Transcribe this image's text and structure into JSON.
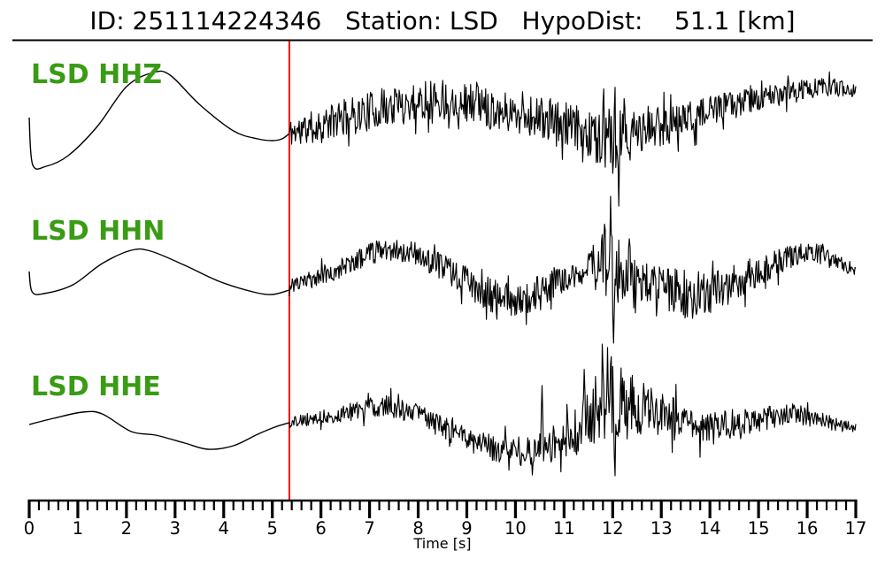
{
  "figure": {
    "title": "ID: 251114224346   Station: LSD   HypoDist:    51.1 [km]",
    "event_id": "251114224346",
    "station": "LSD",
    "hypodist_km": 51.1
  },
  "chart_data": {
    "type": "line",
    "title": "ID: 251114224346   Station: LSD   HypoDist:    51.1 [km]",
    "xlabel": "Time [s]",
    "xlim": [
      0,
      17
    ],
    "x_ticks": [
      0,
      1,
      2,
      3,
      4,
      5,
      6,
      7,
      8,
      9,
      10,
      11,
      12,
      13,
      14,
      15,
      16,
      17
    ],
    "minor_tick_step_s": 0.2,
    "grid": false,
    "legend": "none",
    "pick_time_s": 5.35,
    "colors": {
      "trace": "#000000",
      "pick_line": "#fa0b0b",
      "channel_label": "#3a9b15",
      "text": "#000000"
    },
    "series": [
      {
        "name": "LSD HHZ",
        "seed": 11,
        "pre_pick": [
          [
            0,
            5
          ],
          [
            0.07,
            -48
          ],
          [
            0.35,
            -50
          ],
          [
            0.8,
            -38
          ],
          [
            1.4,
            -5
          ],
          [
            2.0,
            40
          ],
          [
            2.55,
            56
          ],
          [
            2.9,
            53
          ],
          [
            3.5,
            20
          ],
          [
            4.2,
            -10
          ],
          [
            4.7,
            -19
          ],
          [
            5.0,
            -21
          ],
          [
            5.2,
            -19
          ],
          [
            5.35,
            -13
          ]
        ],
        "post_center": [
          [
            5.35,
            -12
          ],
          [
            6.0,
            -4
          ],
          [
            6.5,
            5
          ],
          [
            7.2,
            15
          ],
          [
            8.3,
            27
          ],
          [
            9.0,
            23
          ],
          [
            9.8,
            12
          ],
          [
            10.5,
            5
          ],
          [
            11.3,
            -10
          ],
          [
            11.9,
            -20
          ],
          [
            12.4,
            -16
          ],
          [
            13.0,
            -3
          ],
          [
            13.8,
            8
          ],
          [
            14.5,
            20
          ],
          [
            15.3,
            30
          ],
          [
            16.3,
            40
          ],
          [
            17,
            37
          ]
        ],
        "post_envelope": [
          [
            5.35,
            16
          ],
          [
            6.0,
            20
          ],
          [
            7.0,
            22
          ],
          [
            8.0,
            24
          ],
          [
            9.0,
            22
          ],
          [
            10.0,
            22
          ],
          [
            10.8,
            26
          ],
          [
            11.6,
            30
          ],
          [
            12.1,
            38
          ],
          [
            12.6,
            28
          ],
          [
            13.4,
            20
          ],
          [
            14.2,
            17
          ],
          [
            15.2,
            13
          ],
          [
            16.2,
            11
          ],
          [
            17,
            9
          ]
        ],
        "spikes": [
          [
            9.2,
            45
          ],
          [
            12.0,
            -58
          ],
          [
            12.13,
            -95
          ]
        ]
      },
      {
        "name": "LSD HHN",
        "seed": 23,
        "pre_pick": [
          [
            0,
            3
          ],
          [
            0.06,
            -20
          ],
          [
            0.3,
            -22
          ],
          [
            0.9,
            -12
          ],
          [
            1.5,
            12
          ],
          [
            2.1,
            27
          ],
          [
            2.5,
            26
          ],
          [
            3.2,
            10
          ],
          [
            3.9,
            -8
          ],
          [
            4.6,
            -20
          ],
          [
            5.0,
            -23
          ],
          [
            5.35,
            -18
          ]
        ],
        "post_center": [
          [
            5.35,
            -15
          ],
          [
            6.0,
            -2
          ],
          [
            6.6,
            12
          ],
          [
            7.3,
            30
          ],
          [
            7.8,
            26
          ],
          [
            8.6,
            5
          ],
          [
            9.4,
            -22
          ],
          [
            10.1,
            -30
          ],
          [
            10.7,
            -14
          ],
          [
            11.3,
            2
          ],
          [
            11.9,
            8
          ],
          [
            12.4,
            -2
          ],
          [
            13.0,
            -16
          ],
          [
            13.6,
            -24
          ],
          [
            14.3,
            -16
          ],
          [
            15.0,
            2
          ],
          [
            15.7,
            22
          ],
          [
            16.1,
            28
          ],
          [
            16.6,
            14
          ],
          [
            17,
            2
          ]
        ],
        "post_envelope": [
          [
            5.35,
            7
          ],
          [
            6.0,
            11
          ],
          [
            7.0,
            13
          ],
          [
            8.0,
            14
          ],
          [
            8.8,
            16
          ],
          [
            9.6,
            20
          ],
          [
            10.2,
            20
          ],
          [
            10.9,
            16
          ],
          [
            11.5,
            16
          ],
          [
            11.95,
            55
          ],
          [
            12.3,
            22
          ],
          [
            12.9,
            26
          ],
          [
            13.6,
            28
          ],
          [
            14.4,
            22
          ],
          [
            15.2,
            16
          ],
          [
            16.0,
            13
          ],
          [
            16.6,
            10
          ],
          [
            17,
            5
          ]
        ],
        "spikes": [
          [
            11.95,
            88
          ],
          [
            12.02,
            -78
          ],
          [
            12.35,
            40
          ],
          [
            13.25,
            -42
          ]
        ]
      },
      {
        "name": "LSD HHE",
        "seed": 37,
        "pre_pick": [
          [
            0,
            -2
          ],
          [
            0.5,
            5
          ],
          [
            1.1,
            12
          ],
          [
            1.5,
            10
          ],
          [
            2.1,
            -10
          ],
          [
            2.6,
            -14
          ],
          [
            3.2,
            -23
          ],
          [
            3.68,
            -30
          ],
          [
            4.2,
            -26
          ],
          [
            4.7,
            -13
          ],
          [
            5.05,
            -5
          ],
          [
            5.35,
            0
          ]
        ],
        "post_center": [
          [
            5.35,
            0
          ],
          [
            6.0,
            6
          ],
          [
            6.6,
            12
          ],
          [
            7.3,
            20
          ],
          [
            7.9,
            12
          ],
          [
            8.6,
            -8
          ],
          [
            9.3,
            -25
          ],
          [
            10.0,
            -33
          ],
          [
            10.6,
            -30
          ],
          [
            11.2,
            -10
          ],
          [
            11.7,
            15
          ],
          [
            12.0,
            23
          ],
          [
            12.5,
            20
          ],
          [
            13.2,
            5
          ],
          [
            14.0,
            -8
          ],
          [
            14.9,
            2
          ],
          [
            15.6,
            12
          ],
          [
            16.2,
            5
          ],
          [
            16.7,
            -4
          ],
          [
            17,
            -7
          ]
        ],
        "post_envelope": [
          [
            5.35,
            6
          ],
          [
            6.3,
            9
          ],
          [
            7.2,
            12
          ],
          [
            8.2,
            12
          ],
          [
            9.2,
            14
          ],
          [
            10.2,
            17
          ],
          [
            11.0,
            22
          ],
          [
            11.5,
            38
          ],
          [
            11.95,
            46
          ],
          [
            12.4,
            34
          ],
          [
            13.0,
            26
          ],
          [
            13.8,
            20
          ],
          [
            14.6,
            18
          ],
          [
            15.4,
            14
          ],
          [
            16.2,
            10
          ],
          [
            17,
            6
          ]
        ],
        "spikes": [
          [
            10.55,
            42
          ],
          [
            11.9,
            85
          ],
          [
            12.05,
            -60
          ]
        ]
      }
    ]
  }
}
